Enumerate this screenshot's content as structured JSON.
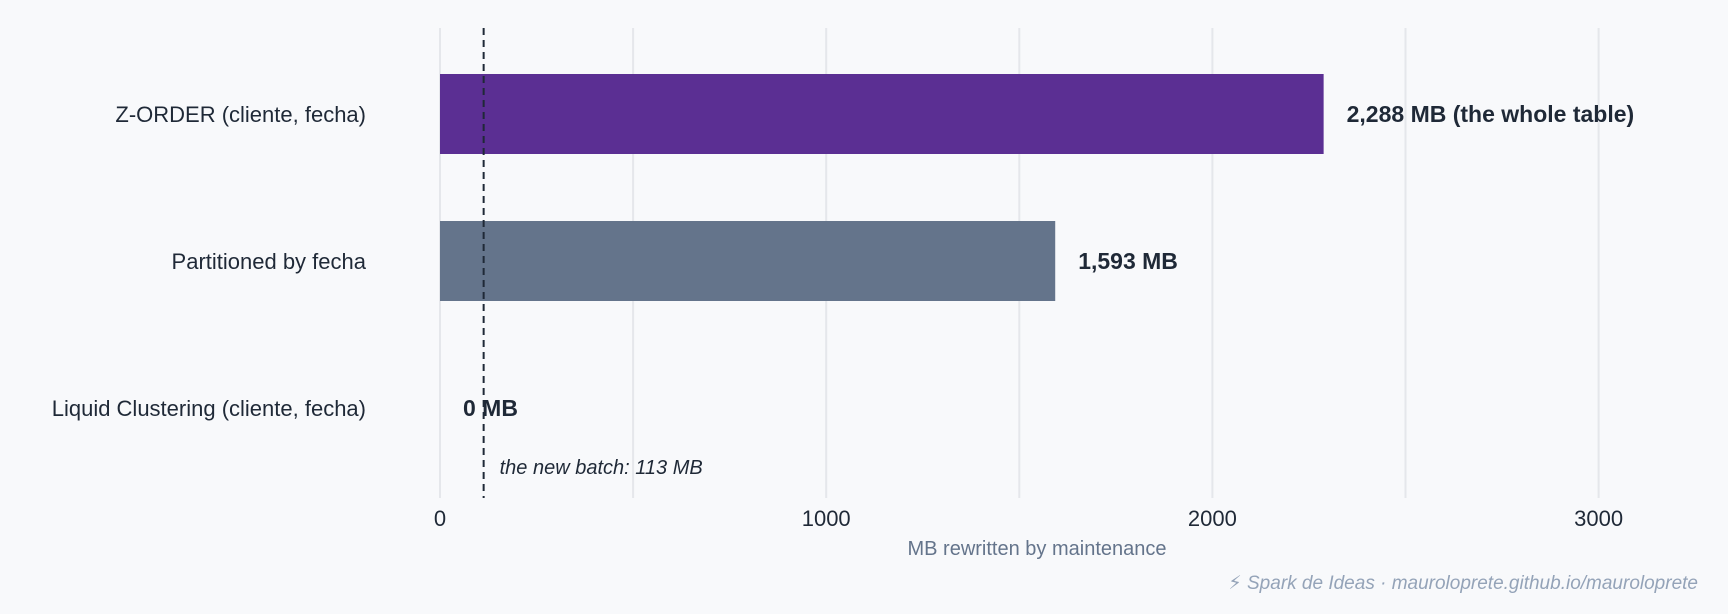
{
  "chart_data": {
    "type": "bar",
    "orientation": "horizontal",
    "categories": [
      "Z-ORDER (cliente, fecha)",
      "Partitioned by fecha",
      "Liquid Clustering (cliente, fecha)"
    ],
    "values": [
      2288,
      1593,
      0
    ],
    "data_labels": [
      "2,288 MB (the whole table)",
      "1,593 MB",
      "0 MB"
    ],
    "bar_colors": [
      "#5b2f93",
      "#64748b",
      "#64748b"
    ],
    "xlabel": "MB rewritten by maintenance",
    "ylabel": "",
    "title": "",
    "xlim": [
      0,
      3200
    ],
    "xticks": [
      0,
      1000,
      2000,
      3000
    ],
    "grid_step": 500,
    "grid": true,
    "reference_line": {
      "value": 113,
      "label": "the new batch: 113 MB",
      "style": "dashed"
    },
    "footer": "⚡ Spark de Ideas · mauroloprete.github.io/mauroloprete"
  },
  "colors": {
    "background": "#f8f9fb",
    "grid": "#e5e7eb",
    "text": "#1f2937",
    "muted": "#64748b",
    "footer": "#94a3b8",
    "reference_line": "#1f2937"
  }
}
